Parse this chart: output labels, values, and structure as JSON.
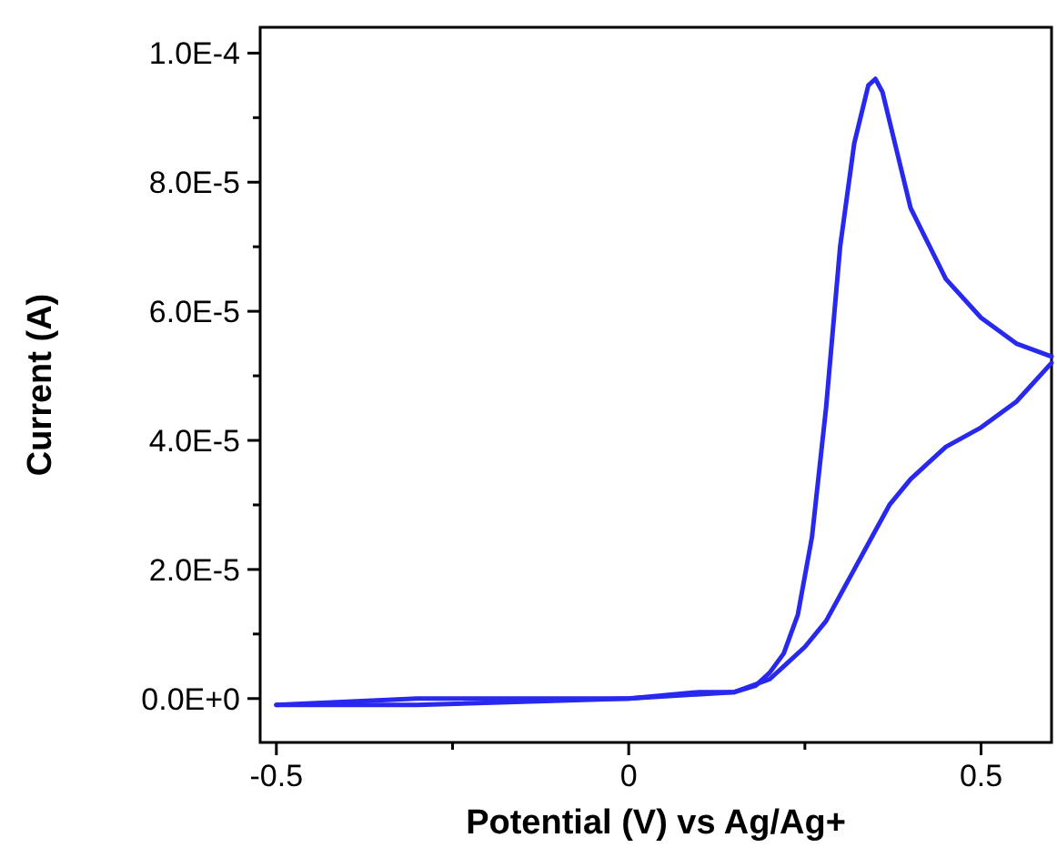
{
  "chart_data": {
    "type": "line",
    "xlabel": "Potential (V) vs Ag/Ag+",
    "ylabel": "Current (A)",
    "xlim": [
      -0.523,
      0.6
    ],
    "ylim": [
      -6.8e-06,
      0.000104
    ],
    "xticks": [
      -0.5,
      {
        "value": -0.25,
        "label": null
      },
      0,
      {
        "value": 0.25,
        "label": null
      },
      0.5
    ],
    "yticks": [
      {
        "value": 0,
        "label": "0.0E+0"
      },
      {
        "value": 1e-05,
        "label": null
      },
      {
        "value": 2e-05,
        "label": "2.0E-5"
      },
      {
        "value": 3e-05,
        "label": null
      },
      {
        "value": 4e-05,
        "label": "4.0E-5"
      },
      {
        "value": 5e-05,
        "label": null
      },
      {
        "value": 6e-05,
        "label": "6.0E-5"
      },
      {
        "value": 7e-05,
        "label": null
      },
      {
        "value": 8e-05,
        "label": "8.0E-5"
      },
      {
        "value": 9e-05,
        "label": null
      },
      {
        "value": 0.0001,
        "label": "1.0E-4"
      }
    ],
    "grid": false,
    "marker": "none",
    "line_style": "solid",
    "series": [
      {
        "color": "#2828ee",
        "x": [
          -0.5,
          -0.3,
          0,
          0.1,
          0.15,
          0.18,
          0.2,
          0.22,
          0.24,
          0.26,
          0.27,
          0.28,
          0.3,
          0.32,
          0.34,
          0.35,
          0.36,
          0.38,
          0.4,
          0.45,
          0.5,
          0.55,
          0.6
        ],
        "values": [
          -1e-06,
          0,
          0,
          1e-06,
          1e-06,
          2e-06,
          4e-06,
          7e-06,
          1.3e-05,
          2.5e-05,
          3.5e-05,
          4.5e-05,
          7e-05,
          8.6e-05,
          9.5e-05,
          9.6e-05,
          9.4e-05,
          8.5e-05,
          7.6e-05,
          6.5e-05,
          5.9e-05,
          5.5e-05,
          5.3e-05
        ]
      },
      {
        "color": "#2828ee",
        "x": [
          -0.5,
          -0.3,
          0,
          0.15,
          0.2,
          0.22,
          0.25,
          0.28,
          0.3,
          0.32,
          0.35,
          0.37,
          0.4,
          0.45,
          0.5,
          0.55,
          0.6
        ],
        "values": [
          -1e-06,
          -1e-06,
          0,
          1e-06,
          3e-06,
          5e-06,
          8e-06,
          1.2e-05,
          1.6e-05,
          2e-05,
          2.6e-05,
          3e-05,
          3.4e-05,
          3.9e-05,
          4.2e-05,
          4.6e-05,
          5.2e-05
        ]
      }
    ]
  }
}
